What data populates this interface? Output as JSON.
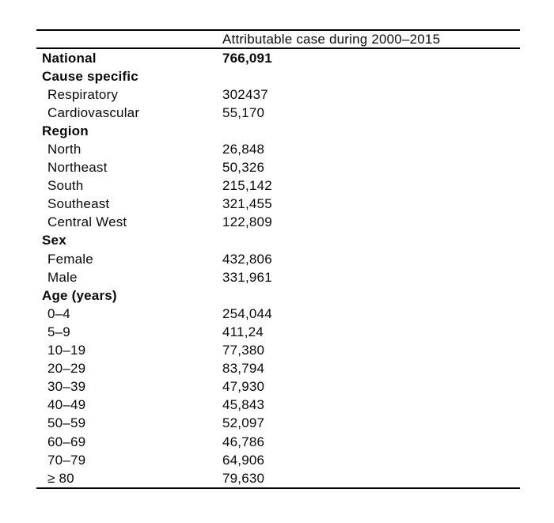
{
  "colors": {
    "background": "#ffffff",
    "text": "#0a0a0a",
    "rule": "#000000"
  },
  "table": {
    "header": {
      "col1": "",
      "col2": "Attributable case during 2000–2015"
    },
    "rows": [
      {
        "label": "National",
        "value": "766,091",
        "bold": true,
        "indent": false
      },
      {
        "label": "Cause specific",
        "value": "",
        "bold": true,
        "indent": false
      },
      {
        "label": "Respiratory",
        "value": "302437",
        "bold": false,
        "indent": true
      },
      {
        "label": "Cardiovascular",
        "value": "55,170",
        "bold": false,
        "indent": true
      },
      {
        "label": "Region",
        "value": "",
        "bold": true,
        "indent": false
      },
      {
        "label": "North",
        "value": "26,848",
        "bold": false,
        "indent": true
      },
      {
        "label": "Northeast",
        "value": "50,326",
        "bold": false,
        "indent": true
      },
      {
        "label": "South",
        "value": "215,142",
        "bold": false,
        "indent": true
      },
      {
        "label": "Southeast",
        "value": "321,455",
        "bold": false,
        "indent": true
      },
      {
        "label": "Central West",
        "value": "122,809",
        "bold": false,
        "indent": true
      },
      {
        "label": "Sex",
        "value": "",
        "bold": true,
        "indent": false
      },
      {
        "label": "Female",
        "value": "432,806",
        "bold": false,
        "indent": true
      },
      {
        "label": "Male",
        "value": "331,961",
        "bold": false,
        "indent": true
      },
      {
        "label": "Age (years)",
        "value": "",
        "bold": true,
        "indent": false
      },
      {
        "label": "0–4",
        "value": "254,044",
        "bold": false,
        "indent": true
      },
      {
        "label": "5–9",
        "value": "411,24",
        "bold": false,
        "indent": true
      },
      {
        "label": "10–19",
        "value": "77,380",
        "bold": false,
        "indent": true
      },
      {
        "label": "20–29",
        "value": "83,794",
        "bold": false,
        "indent": true
      },
      {
        "label": "30–39",
        "value": "47,930",
        "bold": false,
        "indent": true
      },
      {
        "label": "40–49",
        "value": "45,843",
        "bold": false,
        "indent": true
      },
      {
        "label": "50–59",
        "value": "52,097",
        "bold": false,
        "indent": true
      },
      {
        "label": "60–69",
        "value": "46,786",
        "bold": false,
        "indent": true
      },
      {
        "label": "70–79",
        "value": "64,906",
        "bold": false,
        "indent": true
      },
      {
        "label": "≥ 80",
        "value": "79,630",
        "bold": false,
        "indent": true
      }
    ]
  },
  "chart_data": {
    "type": "table",
    "title": "",
    "columns": [
      "",
      "Attributable case during 2000–2015"
    ],
    "rows": [
      [
        "National",
        "766,091"
      ],
      [
        "Cause specific",
        ""
      ],
      [
        "Respiratory",
        "302437"
      ],
      [
        "Cardiovascular",
        "55,170"
      ],
      [
        "Region",
        ""
      ],
      [
        "North",
        "26,848"
      ],
      [
        "Northeast",
        "50,326"
      ],
      [
        "South",
        "215,142"
      ],
      [
        "Southeast",
        "321,455"
      ],
      [
        "Central West",
        "122,809"
      ],
      [
        "Sex",
        ""
      ],
      [
        "Female",
        "432,806"
      ],
      [
        "Male",
        "331,961"
      ],
      [
        "Age (years)",
        ""
      ],
      [
        "0–4",
        "254,044"
      ],
      [
        "5–9",
        "411,24"
      ],
      [
        "10–19",
        "77,380"
      ],
      [
        "20–29",
        "83,794"
      ],
      [
        "30–39",
        "47,930"
      ],
      [
        "40–49",
        "45,843"
      ],
      [
        "50–59",
        "52,097"
      ],
      [
        "60–69",
        "46,786"
      ],
      [
        "70–79",
        "64,906"
      ],
      [
        "≥ 80",
        "79,630"
      ]
    ]
  }
}
